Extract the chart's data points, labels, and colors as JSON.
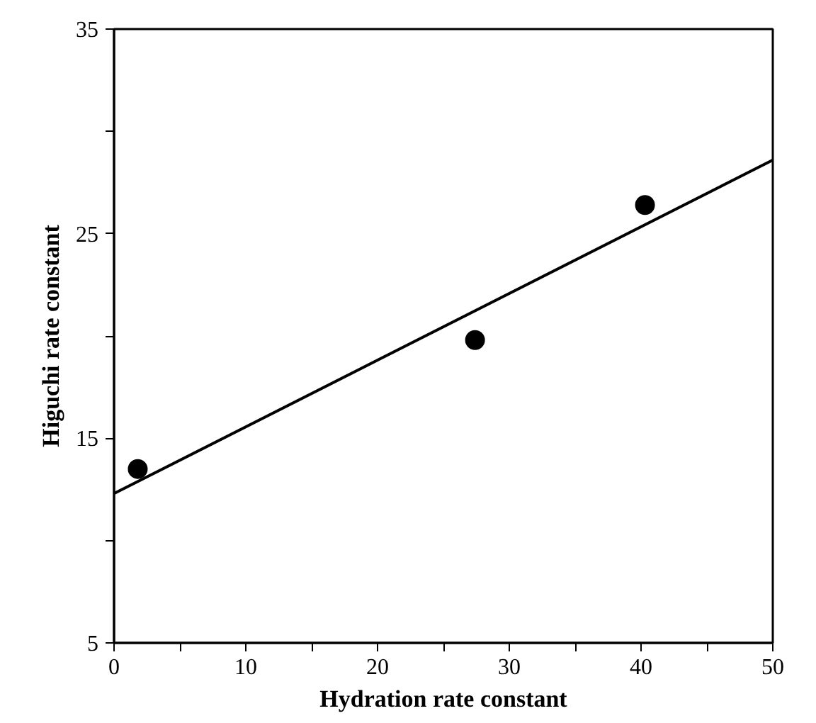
{
  "chart_data": {
    "type": "scatter",
    "xlabel": "Hydration rate constant",
    "ylabel": "Higuchi rate constant",
    "xlim": [
      0,
      50
    ],
    "ylim": [
      5,
      35
    ],
    "xticks": [
      0,
      {
        "value": 5,
        "label": null
      },
      10,
      {
        "value": 15,
        "label": null
      },
      20,
      {
        "value": 25,
        "label": null
      },
      30,
      {
        "value": 35,
        "label": null
      },
      40,
      {
        "value": 45,
        "label": null
      },
      50
    ],
    "yticks": [
      5,
      {
        "value": 10,
        "label": null
      },
      15,
      {
        "value": 20,
        "label": null
      },
      25,
      {
        "value": 30,
        "label": null
      },
      35
    ],
    "grid": false,
    "series": [
      {
        "color": "#000000",
        "marker": "circle",
        "x": [
          1.8,
          27.4,
          40.3
        ],
        "values": [
          13.5,
          19.8,
          26.4
        ]
      },
      {
        "type": "line",
        "color": "#000000",
        "marker": "none",
        "line_style": "solid",
        "x": [
          0,
          50
        ],
        "values": [
          12.3,
          28.6
        ]
      }
    ]
  }
}
